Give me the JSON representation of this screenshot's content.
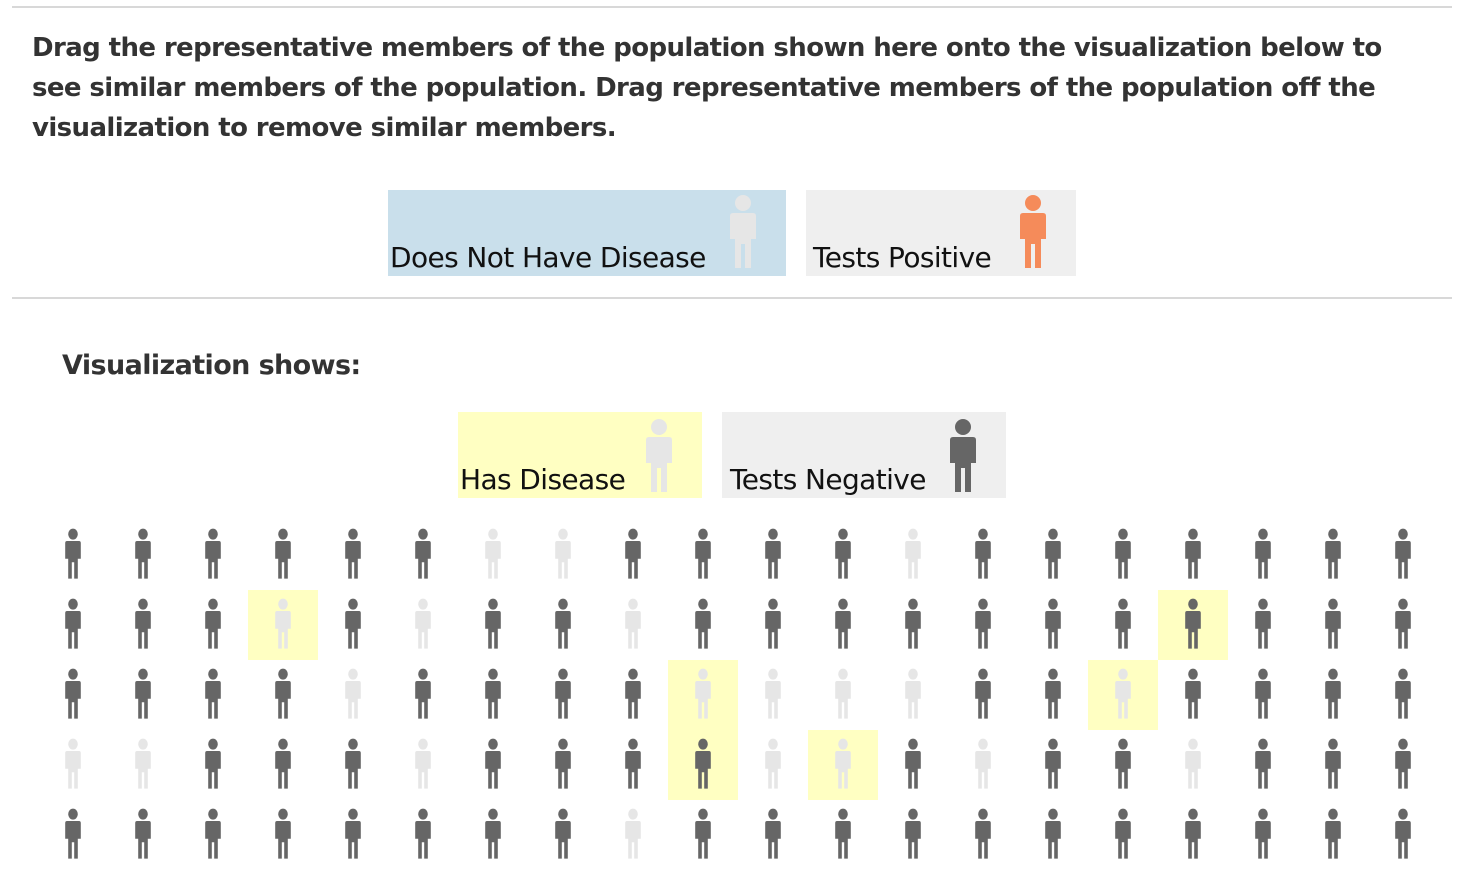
{
  "instructions": "Drag the representative members of the population shown here onto the visualization below to see similar members of the population. Drag representative members of the population off the visualization to remove similar members.",
  "palette": [
    {
      "id": "does-not-have-disease",
      "label": "Does Not Have Disease",
      "bg": "#c9dfeb",
      "icon_color": "#e6e6e6"
    },
    {
      "id": "tests-positive",
      "label": "Tests Positive",
      "bg": "#efefef",
      "icon_color": "#f58b5a"
    }
  ],
  "visualization": {
    "title": "Visualization shows:",
    "active": [
      {
        "id": "has-disease",
        "label": "Has Disease",
        "bg": "#ffffc2",
        "icon_color": "#e6e6e6"
      },
      {
        "id": "tests-negative",
        "label": "Tests Negative",
        "bg": "#efefef",
        "icon_color": "#666666"
      }
    ]
  },
  "colors": {
    "dark_person": "#666666",
    "light_person": "#e6e6e6",
    "highlight": "#ffffc2"
  },
  "population": {
    "legend": "d = tests negative (dark), l = tests positive (light), lowercase = no disease, uppercase = has disease",
    "rows": [
      "dddddd lldddd ldddddddd",
      "dddLdlddl dddddddDdddd",
      "ddddlddddLlllddLdddd",
      "llddd lddd DlLdlddldddd",
      "dddddddd ldddddddddddd"
    ]
  }
}
